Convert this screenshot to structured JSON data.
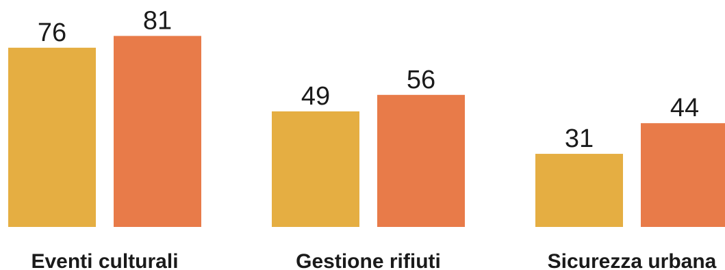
{
  "chart_data": {
    "type": "bar",
    "categories": [
      "Eventi culturali",
      "Gestione rifiuti",
      "Sicurezza urbana"
    ],
    "series": [
      {
        "values": [
          76,
          49,
          31
        ],
        "color": "#E5AE42"
      },
      {
        "values": [
          81,
          56,
          44
        ],
        "color": "#E87B49"
      }
    ],
    "data_labels": true,
    "grid": false,
    "legend": "none",
    "title": "",
    "xlabel": "",
    "ylabel": ""
  }
}
